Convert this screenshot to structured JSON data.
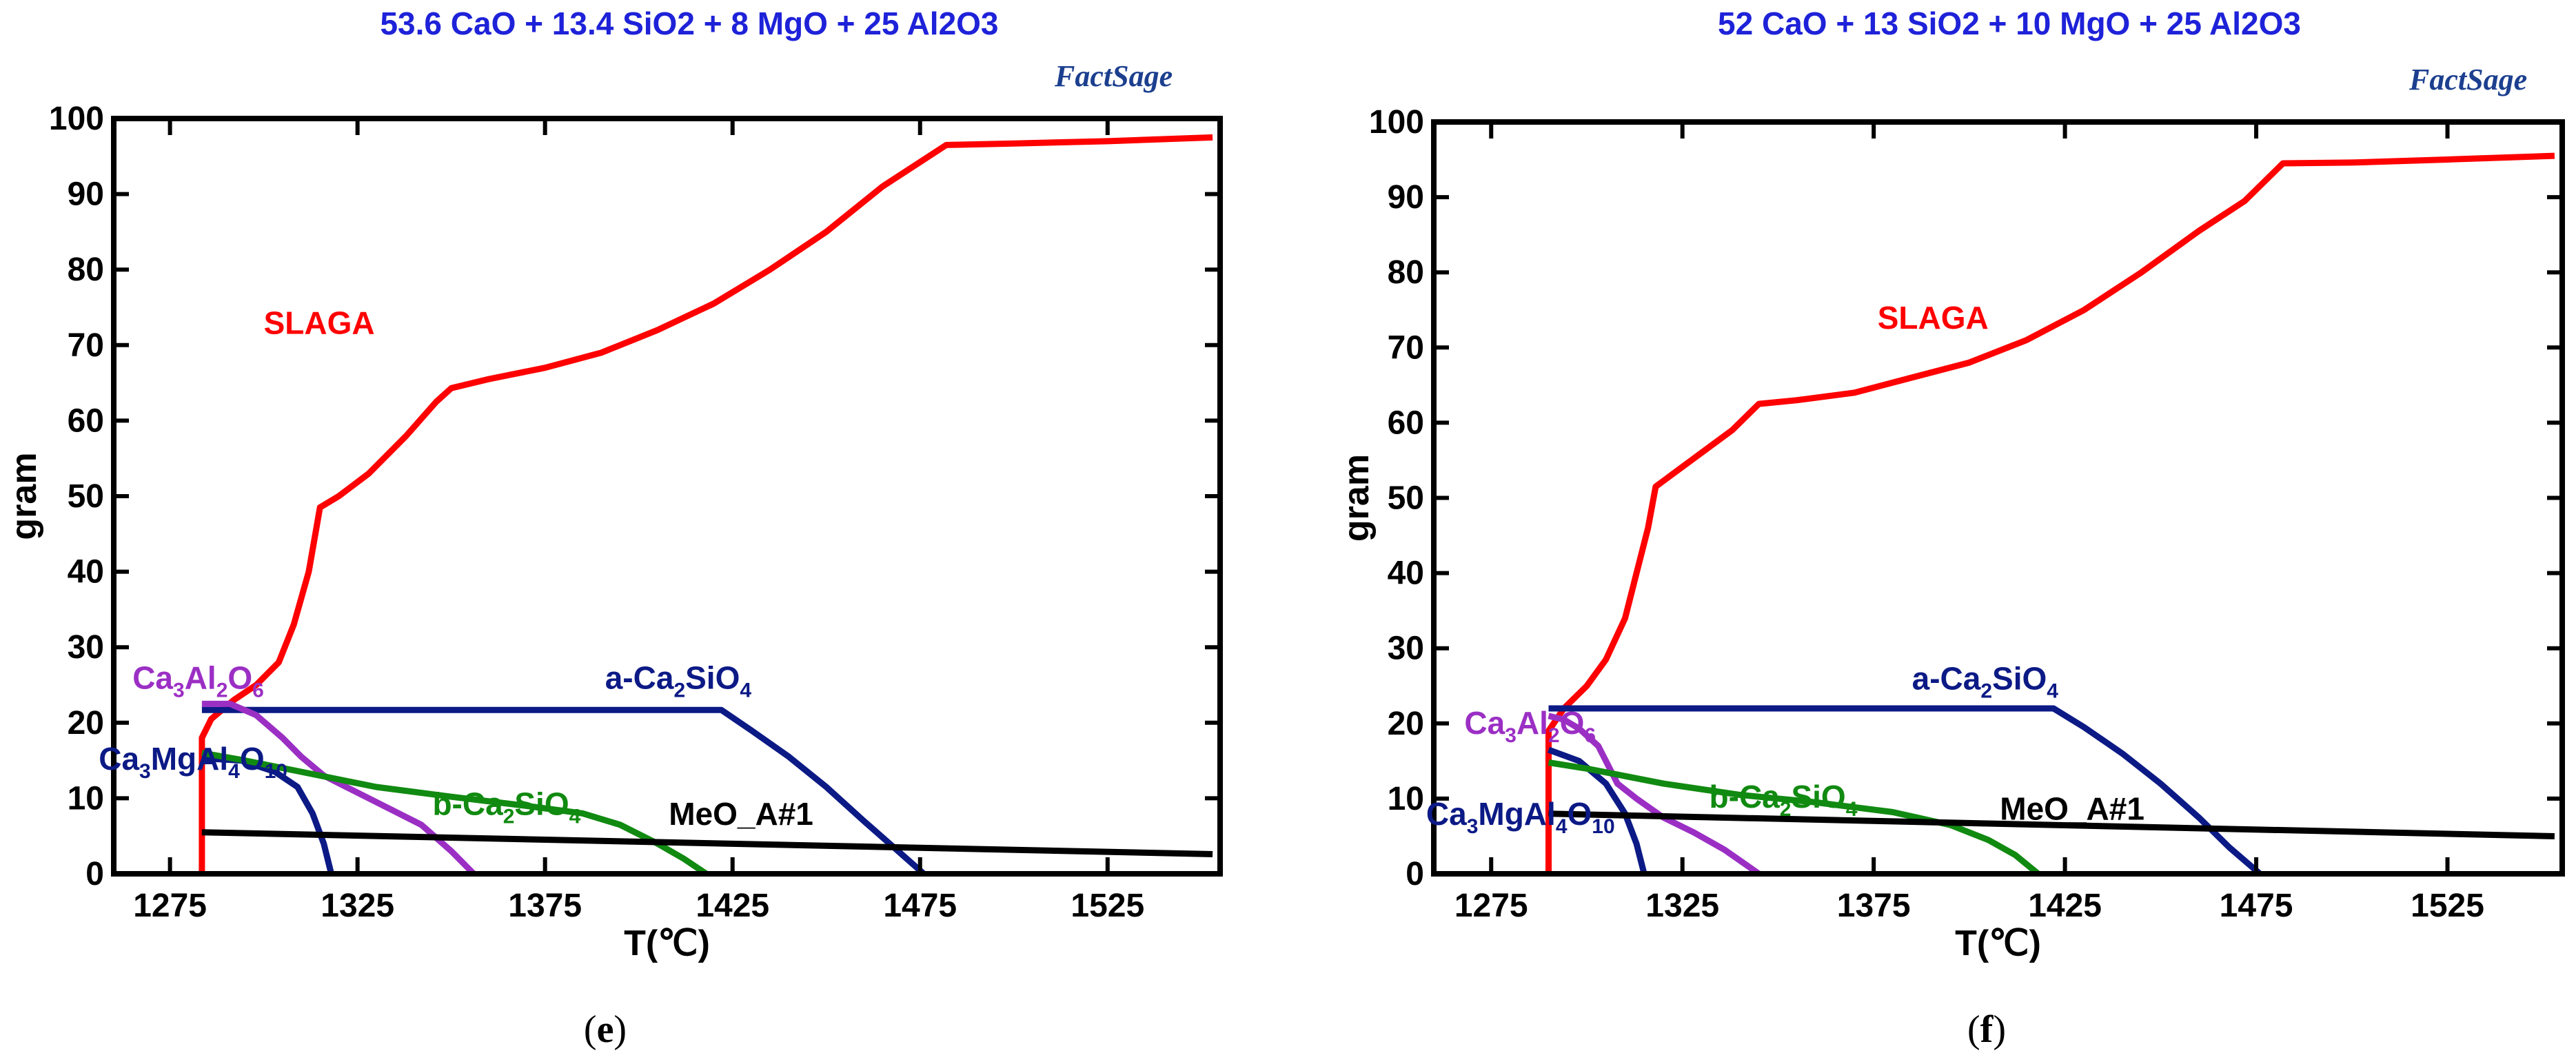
{
  "chart_data": [
    {
      "panel": "(e)",
      "panel_letter": "e",
      "type": "line",
      "title": "53.6 CaO  +  13.4 SiO2  +  8 MgO  +  25 Al2O3",
      "logo": "FactSage",
      "xlabel": "T(℃)",
      "ylabel": "gram",
      "xlim": [
        1260,
        1555
      ],
      "ylim": [
        0,
        100
      ],
      "xticks": [
        1275,
        1325,
        1375,
        1425,
        1475,
        1525
      ],
      "yticks": [
        0,
        10,
        20,
        30,
        40,
        50,
        60,
        70,
        80,
        90,
        100
      ],
      "grid": false,
      "colors": {
        "title": "#1e22d8",
        "logo": "#1c3f8f"
      },
      "series": [
        {
          "name": "SLAGA",
          "label_main": "SLAGA",
          "color": "#ff0000",
          "label_at": [
            1300,
            71.5
          ],
          "points": [
            [
              1283.5,
              0
            ],
            [
              1283.5,
              18
            ],
            [
              1286,
              20.5
            ],
            [
              1292,
              23
            ],
            [
              1298,
              25
            ],
            [
              1304,
              28
            ],
            [
              1308,
              33
            ],
            [
              1312,
              40
            ],
            [
              1315,
              48.5
            ],
            [
              1320,
              50
            ],
            [
              1328,
              53
            ],
            [
              1338,
              58
            ],
            [
              1346,
              62.5
            ],
            [
              1350,
              64.3
            ],
            [
              1360,
              65.5
            ],
            [
              1375,
              67
            ],
            [
              1390,
              69
            ],
            [
              1405,
              72
            ],
            [
              1420,
              75.5
            ],
            [
              1435,
              80
            ],
            [
              1450,
              85
            ],
            [
              1465,
              91
            ],
            [
              1482,
              96.5
            ],
            [
              1500,
              96.7
            ],
            [
              1525,
              97
            ],
            [
              1553,
              97.5
            ]
          ]
        },
        {
          "name": "a-Ca2SiO4",
          "label_main": "a-Ca",
          "label_sub1": "2",
          "label_mid": "SiO",
          "label_sub2": "4",
          "color": "#0c1a86",
          "label_at": [
            1391,
            24.5
          ],
          "points": [
            [
              1283.5,
              21.7
            ],
            [
              1300,
              21.7
            ],
            [
              1350,
              21.7
            ],
            [
              1400,
              21.7
            ],
            [
              1422,
              21.7
            ],
            [
              1430,
              19
            ],
            [
              1440,
              15.5
            ],
            [
              1450,
              11.5
            ],
            [
              1460,
              7
            ],
            [
              1468,
              3.5
            ],
            [
              1476,
              0
            ]
          ]
        },
        {
          "name": "Ca3Al2O6",
          "label_main": "Ca",
          "label_sub1": "3",
          "label_mid": "Al",
          "label_sub2": "2",
          "label_end": "O",
          "label_sub3": "6",
          "color": "#9b2fc4",
          "label_at": [
            1265,
            24.5
          ],
          "points": [
            [
              1283.5,
              22.5
            ],
            [
              1291,
              22.5
            ],
            [
              1298,
              21
            ],
            [
              1305,
              18
            ],
            [
              1310,
              15.5
            ],
            [
              1316,
              13
            ],
            [
              1322,
              11.5
            ],
            [
              1332,
              9
            ],
            [
              1342,
              6.5
            ],
            [
              1350,
              3
            ],
            [
              1356,
              0
            ]
          ]
        },
        {
          "name": "Ca3MgAl4O10",
          "label_main": "Ca",
          "label_sub1": "3",
          "label_mid": "MgAl",
          "label_sub2": "4",
          "label_end": "O",
          "label_sub3": "10",
          "color": "#0c1a86",
          "label_at": [
            1256,
            13.8
          ],
          "points": [
            [
              1283.5,
              15.3
            ],
            [
              1294,
              15
            ],
            [
              1303,
              13.5
            ],
            [
              1309,
              11.5
            ],
            [
              1313,
              8
            ],
            [
              1316,
              4
            ],
            [
              1318,
              0
            ]
          ]
        },
        {
          "name": "b-Ca2SiO4",
          "label_main": "b-Ca",
          "label_sub1": "2",
          "label_mid": "SiO",
          "label_sub2": "4",
          "color": "#118a11",
          "label_at": [
            1345,
            7.8
          ],
          "points": [
            [
              1283.5,
              16
            ],
            [
              1295,
              15
            ],
            [
              1310,
              13.5
            ],
            [
              1330,
              11.5
            ],
            [
              1350,
              10.2
            ],
            [
              1370,
              9
            ],
            [
              1385,
              8
            ],
            [
              1395,
              6.5
            ],
            [
              1405,
              4
            ],
            [
              1412,
              2
            ],
            [
              1418,
              0
            ]
          ]
        },
        {
          "name": "MeO_A#1",
          "label_main": "MeO_A#1",
          "color": "#000000",
          "label_at": [
            1408,
            6.5
          ],
          "points": [
            [
              1283.5,
              5.5
            ],
            [
              1553,
              2.6
            ]
          ]
        }
      ]
    },
    {
      "panel": "(f)",
      "panel_letter": "f",
      "type": "line",
      "title": "52 CaO  +  13 SiO2  +  10 MgO  +  25 Al2O3",
      "logo": "FactSage",
      "xlabel": "T(℃)",
      "ylabel": "gram",
      "xlim": [
        1260,
        1555
      ],
      "ylim": [
        0,
        100
      ],
      "xticks": [
        1275,
        1325,
        1375,
        1425,
        1475,
        1525
      ],
      "yticks": [
        0,
        10,
        20,
        30,
        40,
        50,
        60,
        70,
        80,
        90,
        100
      ],
      "grid": false,
      "colors": {
        "title": "#1e22d8",
        "logo": "#1c3f8f"
      },
      "series": [
        {
          "name": "SLAGA",
          "label_main": "SLAGA",
          "color": "#ff0000",
          "label_at": [
            1376,
            72.5
          ],
          "points": [
            [
              1290,
              0
            ],
            [
              1290,
              19
            ],
            [
              1294,
              22
            ],
            [
              1300,
              25
            ],
            [
              1305,
              28.5
            ],
            [
              1310,
              34
            ],
            [
              1313,
              40
            ],
            [
              1316,
              46
            ],
            [
              1318,
              51.5
            ],
            [
              1322,
              53
            ],
            [
              1330,
              56
            ],
            [
              1338,
              59
            ],
            [
              1345,
              62.5
            ],
            [
              1355,
              63
            ],
            [
              1370,
              64
            ],
            [
              1385,
              66
            ],
            [
              1400,
              68
            ],
            [
              1415,
              71
            ],
            [
              1430,
              75
            ],
            [
              1445,
              80
            ],
            [
              1460,
              85.5
            ],
            [
              1472,
              89.5
            ],
            [
              1482,
              94.5
            ],
            [
              1500,
              94.6
            ],
            [
              1525,
              95
            ],
            [
              1553,
              95.5
            ]
          ]
        },
        {
          "name": "a-Ca2SiO4",
          "label_main": "a-Ca",
          "label_sub1": "2",
          "label_mid": "SiO",
          "label_sub2": "4",
          "color": "#0c1a86",
          "label_at": [
            1385,
            24.5
          ],
          "points": [
            [
              1290,
              22
            ],
            [
              1330,
              22
            ],
            [
              1380,
              22
            ],
            [
              1422,
              22
            ],
            [
              1430,
              19.5
            ],
            [
              1440,
              16
            ],
            [
              1450,
              12
            ],
            [
              1460,
              7.5
            ],
            [
              1468,
              3.5
            ],
            [
              1476,
              0
            ]
          ]
        },
        {
          "name": "Ca3Al2O6",
          "label_main": "Ca",
          "label_sub1": "3",
          "label_mid": "Al",
          "label_sub2": "2",
          "label_end": "O",
          "label_sub3": "6",
          "color": "#9b2fc4",
          "label_at": [
            1268,
            18.6
          ],
          "points": [
            [
              1290,
              21
            ],
            [
              1294,
              20.5
            ],
            [
              1298,
              19.3
            ],
            [
              1303,
              17
            ],
            [
              1308,
              12
            ],
            [
              1313,
              10
            ],
            [
              1320,
              7.5
            ],
            [
              1328,
              5.5
            ],
            [
              1336,
              3.2
            ],
            [
              1345,
              0
            ]
          ]
        },
        {
          "name": "Ca3MgAl4O10",
          "label_main": "Ca",
          "label_sub1": "3",
          "label_mid": "MgAl",
          "label_sub2": "4",
          "label_end": "O",
          "label_sub3": "10",
          "color": "#0c1a86",
          "label_at": [
            1258,
            6.5
          ],
          "points": [
            [
              1290,
              16.5
            ],
            [
              1298,
              15
            ],
            [
              1305,
              12
            ],
            [
              1310,
              8
            ],
            [
              1313,
              4
            ],
            [
              1315,
              0
            ]
          ]
        },
        {
          "name": "b-Ca2SiO4",
          "label_main": "b-Ca",
          "label_sub1": "2",
          "label_mid": "SiO",
          "label_sub2": "4",
          "color": "#118a11",
          "label_at": [
            1332,
            8.8
          ],
          "points": [
            [
              1290,
              14.8
            ],
            [
              1300,
              14
            ],
            [
              1320,
              12
            ],
            [
              1340,
              10.5
            ],
            [
              1360,
              9.5
            ],
            [
              1380,
              8.2
            ],
            [
              1395,
              6.5
            ],
            [
              1405,
              4.5
            ],
            [
              1412,
              2.5
            ],
            [
              1418,
              0
            ]
          ]
        },
        {
          "name": "MeO_A#1",
          "label_main": "MeO_A#1",
          "color": "#000000",
          "label_at": [
            1408,
            7.2
          ],
          "points": [
            [
              1290,
              8
            ],
            [
              1553,
              5
            ]
          ]
        }
      ]
    }
  ]
}
